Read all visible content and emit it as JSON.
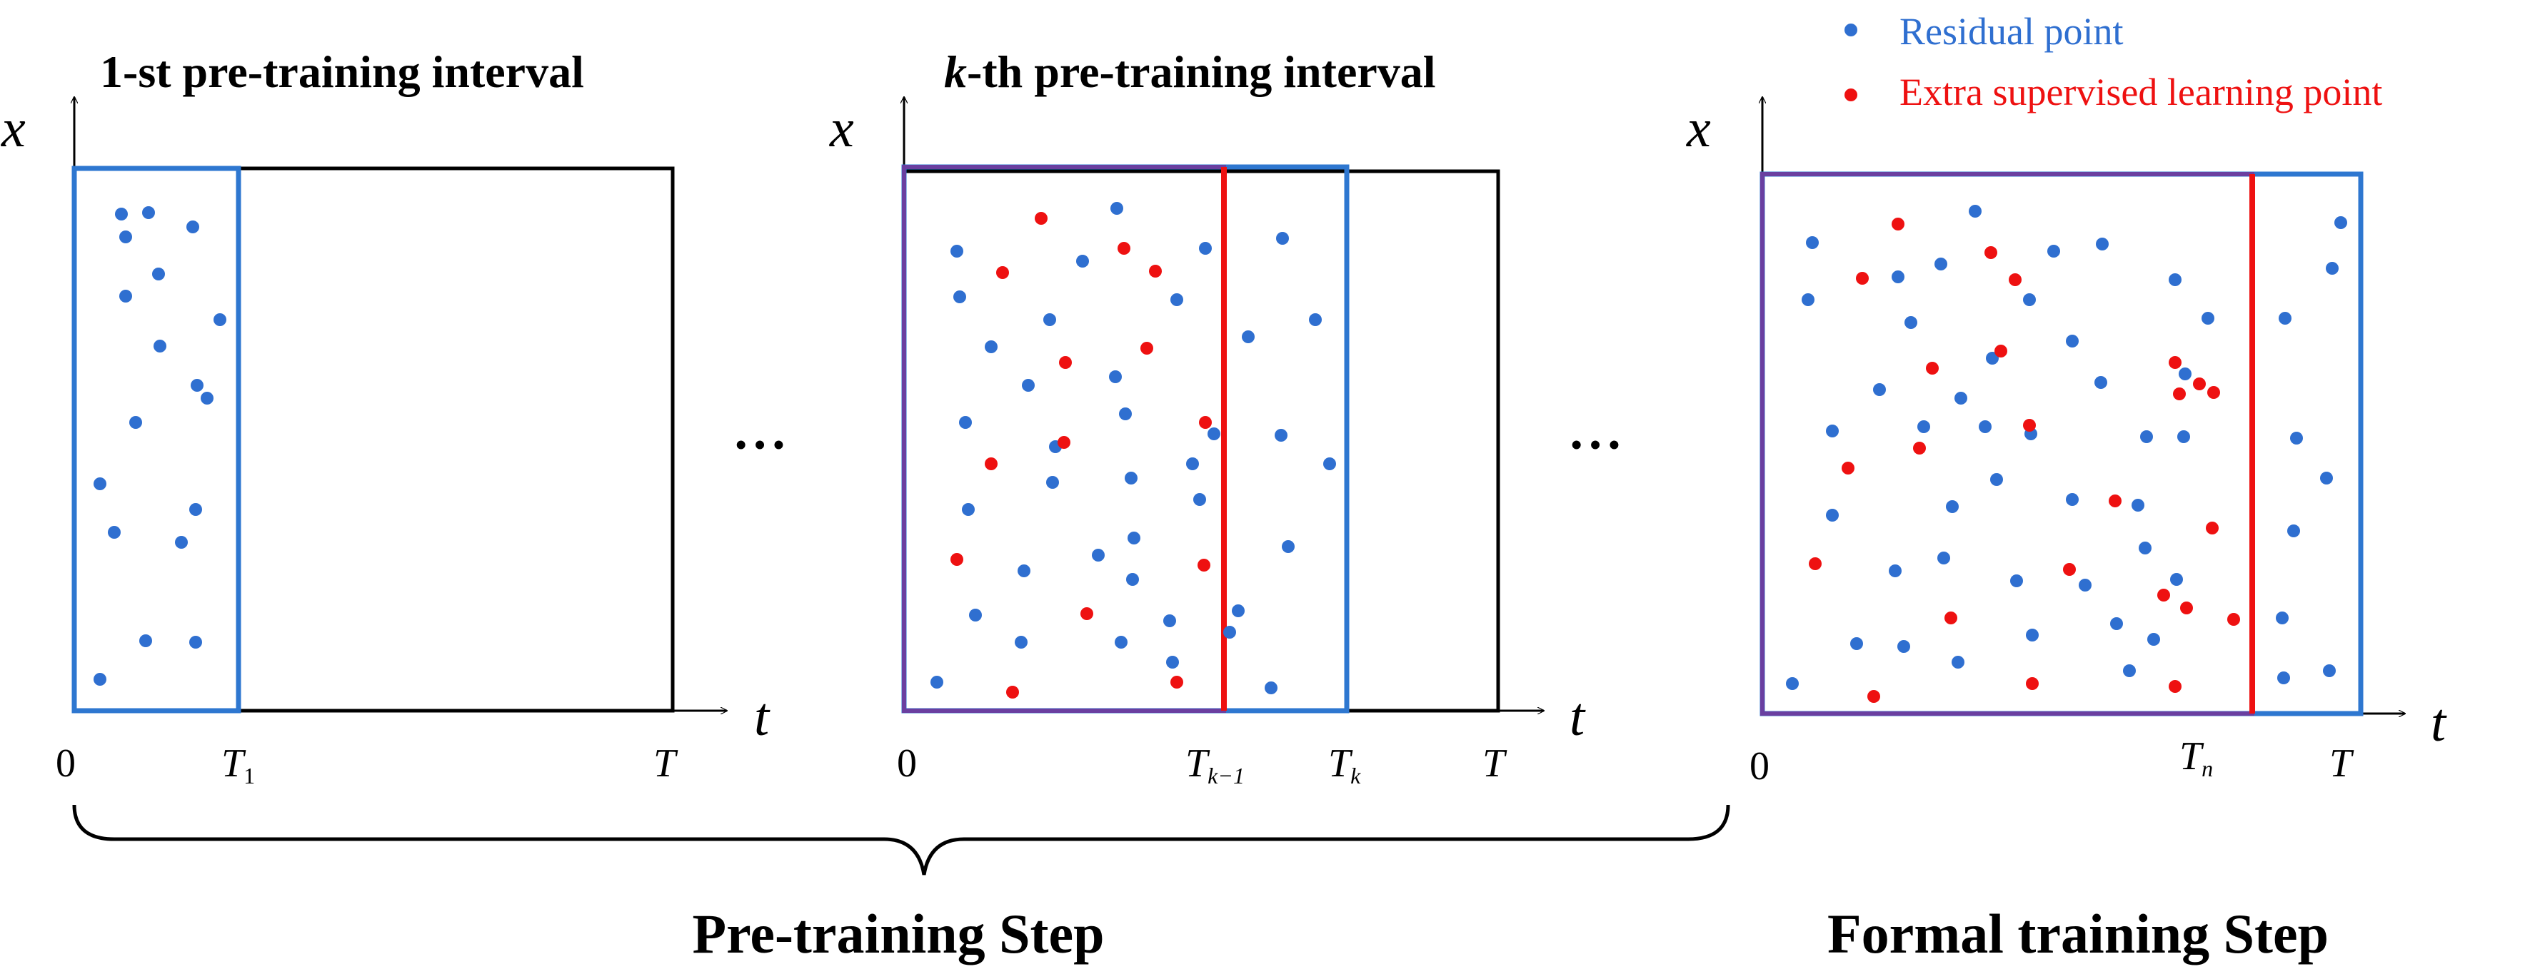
{
  "legend": {
    "residual_label": "Residual point",
    "supervised_label": "Extra supervised learning point",
    "residual_color": "#2f6fd0",
    "supervised_color": "#ee1111"
  },
  "panels": [
    {
      "title_prefix": "1-st",
      "title_rest": " pre-training interval",
      "x_axis": "t",
      "y_axis": "x",
      "origin": "0",
      "ticks": [
        {
          "base": "T",
          "sub": "1"
        },
        {
          "base": "T",
          "sub": ""
        }
      ]
    },
    {
      "title_prefix": "k",
      "title_rest": "-th pre-training interval",
      "x_axis": "t",
      "y_axis": "x",
      "origin": "0",
      "ticks": [
        {
          "base": "T",
          "sub": "k−1"
        },
        {
          "base": "T",
          "sub": "k"
        },
        {
          "base": "T",
          "sub": ""
        }
      ]
    },
    {
      "title_prefix": "",
      "title_rest": "",
      "x_axis": "t",
      "y_axis": "x",
      "origin": "0",
      "ticks": [
        {
          "base": "T",
          "sub": "n"
        },
        {
          "base": "T",
          "sub": ""
        }
      ]
    }
  ],
  "ellipsis": "• • •",
  "steps": {
    "pretraining": "Pre-training Step",
    "formal": "Formal training Step"
  }
}
